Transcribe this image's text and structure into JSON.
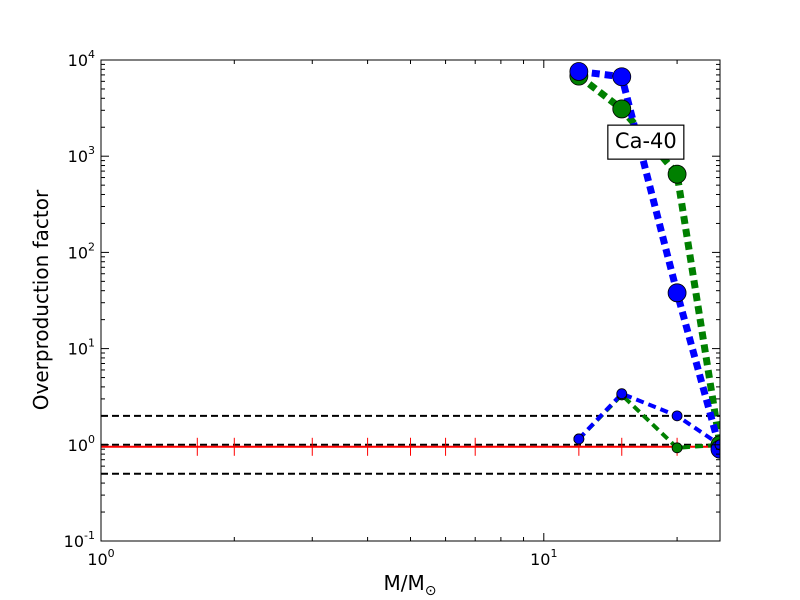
{
  "chart_data": {
    "type": "line",
    "xlabel": "M/M",
    "xlabel_subscript": "⊙",
    "ylabel": "Overproduction factor",
    "x_scale": "log",
    "y_scale": "log",
    "xlim": [
      1,
      25
    ],
    "ylim": [
      0.1,
      10000
    ],
    "x_ticks": [
      {
        "value": 1,
        "base": "10",
        "exp": "0"
      },
      {
        "value": 10,
        "base": "10",
        "exp": "1"
      }
    ],
    "y_ticks": [
      {
        "value": 0.1,
        "base": "10",
        "exp": "-1"
      },
      {
        "value": 1,
        "base": "10",
        "exp": "0"
      },
      {
        "value": 10,
        "base": "10",
        "exp": "1"
      },
      {
        "value": 100,
        "base": "10",
        "exp": "2"
      },
      {
        "value": 1000,
        "base": "10",
        "exp": "3"
      },
      {
        "value": 10000,
        "base": "10",
        "exp": "4"
      }
    ],
    "annotation": {
      "text": "Ca-40",
      "x": 17.0,
      "y": 1400
    },
    "reference_lines": [
      {
        "y": 2.0,
        "color": "#000000",
        "style": "dashed"
      },
      {
        "y": 1.0,
        "color": "#000000",
        "style": "dashed"
      },
      {
        "y": 0.5,
        "color": "#000000",
        "style": "dashed"
      }
    ],
    "red_baseline": {
      "y": 1.0,
      "color": "#ff0000",
      "x_start": 1,
      "x_end": 25,
      "tick_x": [
        1.65,
        2.0,
        3.0,
        4.0,
        5.0,
        6.0,
        7.0,
        12.0,
        15.0,
        20.0,
        25.0
      ]
    },
    "series": [
      {
        "color": "#008000",
        "line_width": 7,
        "marker_r": 9,
        "x": [
          12,
          15,
          20,
          25
        ],
        "y": [
          6800,
          3100,
          650,
          1.0
        ]
      },
      {
        "color": "#0000ff",
        "line_width": 7,
        "marker_r": 9,
        "x": [
          12,
          15,
          20,
          25
        ],
        "y": [
          7600,
          6700,
          38,
          0.9
        ]
      },
      {
        "color": "#008000",
        "line_width": 4,
        "marker_r": 5,
        "x": [
          12,
          15,
          20,
          25
        ],
        "y": [
          1.15,
          3.3,
          0.93,
          1.0
        ]
      },
      {
        "color": "#0000ff",
        "line_width": 4,
        "marker_r": 5,
        "x": [
          12,
          15,
          20,
          25
        ],
        "y": [
          1.15,
          3.4,
          2.0,
          1.0
        ]
      }
    ]
  }
}
